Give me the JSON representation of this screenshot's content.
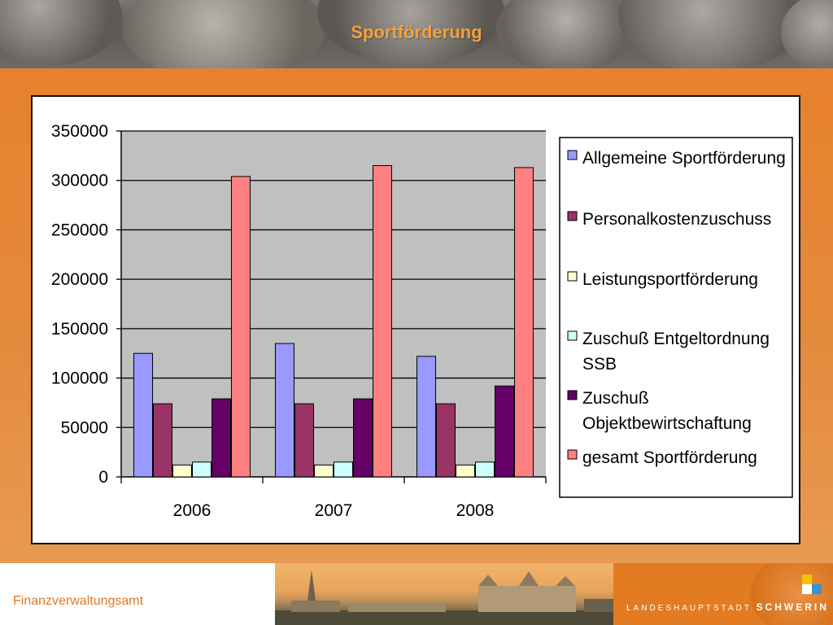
{
  "header": {
    "title": "Sportförderung"
  },
  "footer": {
    "department": "Finanzverwaltungsamt",
    "city_prefix": "LANDESHAUPTSTADT",
    "city_name": "SCHWERIN"
  },
  "colors": {
    "background_orange": "#e8832e",
    "title_orange": "#f4a040",
    "plot_area": "#c0c0c0"
  },
  "chart_data": {
    "type": "bar",
    "categories": [
      "2006",
      "2007",
      "2008"
    ],
    "ylim": [
      0,
      350000
    ],
    "yticks": [
      0,
      50000,
      100000,
      150000,
      200000,
      250000,
      300000,
      350000
    ],
    "grid": true,
    "legend_position": "right",
    "series": [
      {
        "name": "Allgemeine Sportförderung",
        "color": "#9999ff",
        "values": [
          125000,
          135000,
          122000
        ]
      },
      {
        "name": "Personalkostenzuschuss",
        "color": "#993366",
        "values": [
          74000,
          74000,
          74000
        ]
      },
      {
        "name": "Leistungsportförderung",
        "color": "#ffffcc",
        "values": [
          12000,
          12000,
          12000
        ]
      },
      {
        "name": "Zuschuß Entgeltordnung SSB",
        "color": "#ccffff",
        "values": [
          15000,
          15000,
          15000
        ]
      },
      {
        "name": "Zuschuß Objektbewirtschaftung",
        "color": "#660066",
        "values": [
          79000,
          79000,
          92000
        ]
      },
      {
        "name": "gesamt Sportförderung",
        "color": "#ff8080",
        "values": [
          304000,
          315000,
          313000
        ]
      }
    ]
  }
}
